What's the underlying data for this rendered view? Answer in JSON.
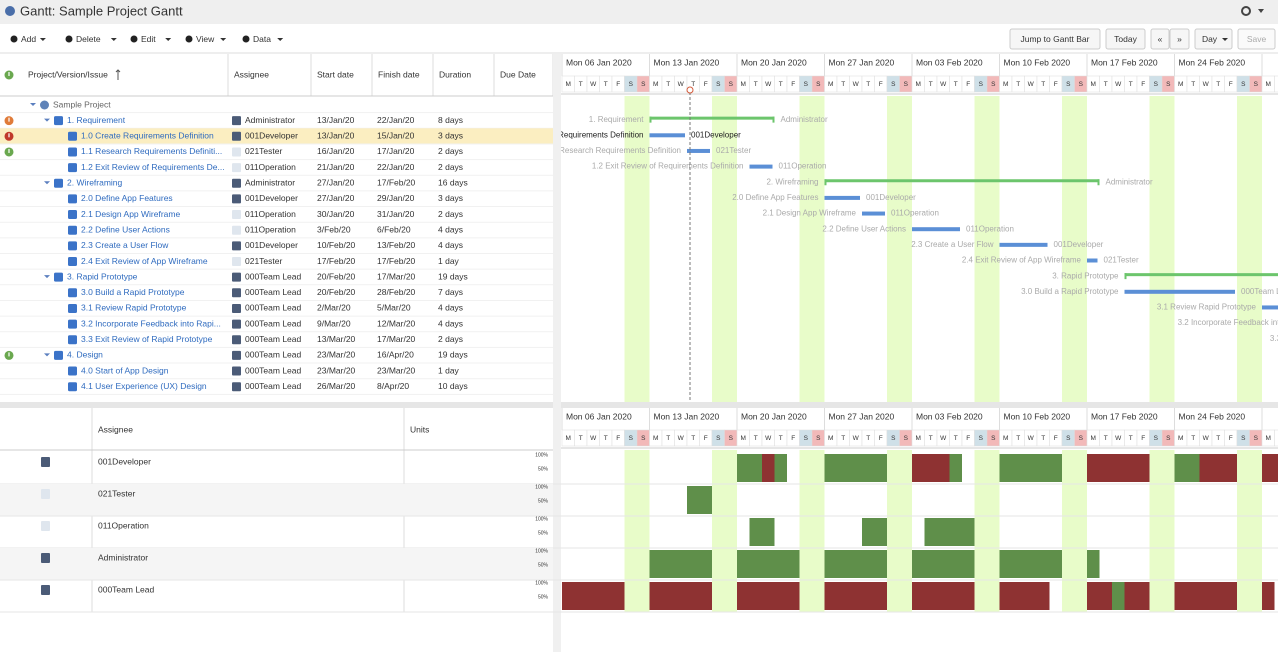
{
  "header": {
    "title": "Gantt: Sample Project Gantt"
  },
  "toolbar": {
    "left": [
      "Add",
      "Delete",
      "Edit",
      "View",
      "Data"
    ],
    "right": [
      "Jump to Gantt Bar",
      "Today",
      "«",
      "»",
      "Day",
      "Save"
    ]
  },
  "grid": {
    "columns": [
      "Project/Version/Issue",
      "Assignee",
      "Start date",
      "Finish date",
      "Duration",
      "Due Date"
    ],
    "header_flag": "ok",
    "rows": [
      {
        "name": "Sample Project",
        "kind": "project",
        "level": 0
      },
      {
        "name": "1. Requirement",
        "assignee": "Administrator",
        "start": "13/Jan/20",
        "finish": "22/Jan/20",
        "duration": "8 days",
        "kind": "summary",
        "level": 1,
        "flag": "warn"
      },
      {
        "name": "1.0 Create Requirements Definition",
        "assignee": "001Developer",
        "start": "13/Jan/20",
        "finish": "15/Jan/20",
        "duration": "3 days",
        "kind": "task",
        "level": 2,
        "flag": "late",
        "selected": true
      },
      {
        "name": "1.1 Research Requirements Definiti...",
        "gantt_name": "1.1 Research Requirements Definition",
        "assignee": "021Tester",
        "start": "16/Jan/20",
        "finish": "17/Jan/20",
        "duration": "2 days",
        "kind": "task",
        "level": 2,
        "flag": "ok"
      },
      {
        "name": "1.2 Exit Review of Requirements De...",
        "gantt_name": "1.2 Exit Review of Requirements Definition",
        "assignee": "011Operation",
        "start": "21/Jan/20",
        "finish": "22/Jan/20",
        "duration": "2 days",
        "kind": "task",
        "level": 2
      },
      {
        "name": "2. Wireframing",
        "assignee": "Administrator",
        "start": "27/Jan/20",
        "finish": "17/Feb/20",
        "duration": "16 days",
        "kind": "summary",
        "level": 1
      },
      {
        "name": "2.0 Define App Features",
        "assignee": "001Developer",
        "start": "27/Jan/20",
        "finish": "29/Jan/20",
        "duration": "3 days",
        "kind": "task",
        "level": 2
      },
      {
        "name": "2.1 Design App Wireframe",
        "assignee": "011Operation",
        "start": "30/Jan/20",
        "finish": "31/Jan/20",
        "duration": "2 days",
        "kind": "task",
        "level": 2
      },
      {
        "name": "2.2 Define User Actions",
        "assignee": "011Operation",
        "start": "3/Feb/20",
        "finish": "6/Feb/20",
        "duration": "4 days",
        "kind": "task",
        "level": 2
      },
      {
        "name": "2.3 Create a User Flow",
        "assignee": "001Developer",
        "start": "10/Feb/20",
        "finish": "13/Feb/20",
        "duration": "4 days",
        "kind": "task",
        "level": 2
      },
      {
        "name": "2.4 Exit Review of App Wireframe",
        "assignee": "021Tester",
        "start": "17/Feb/20",
        "finish": "17/Feb/20",
        "duration": "1 day",
        "kind": "task",
        "level": 2
      },
      {
        "name": "3. Rapid Prototype",
        "assignee": "000Team Lead",
        "start": "20/Feb/20",
        "finish": "17/Mar/20",
        "duration": "19 days",
        "kind": "summary",
        "level": 1
      },
      {
        "name": "3.0 Build a Rapid Prototype",
        "assignee": "000Team Lead",
        "start": "20/Feb/20",
        "finish": "28/Feb/20",
        "duration": "7 days",
        "kind": "task",
        "level": 2
      },
      {
        "name": "3.1 Review Rapid Prototype",
        "assignee": "000Team Lead",
        "start": "2/Mar/20",
        "finish": "5/Mar/20",
        "duration": "4 days",
        "kind": "task",
        "level": 2
      },
      {
        "name": "3.2 Incorporate Feedback into Rapi...",
        "gantt_name": "3.2 Incorporate Feedback into Rapid Prototype",
        "assignee": "000Team Lead",
        "start": "9/Mar/20",
        "finish": "12/Mar/20",
        "duration": "4 days",
        "kind": "task",
        "level": 2
      },
      {
        "name": "3.3 Exit Review of Rapid Prototype",
        "assignee": "000Team Lead",
        "start": "13/Mar/20",
        "finish": "17/Mar/20",
        "duration": "2 days",
        "kind": "task",
        "level": 2
      },
      {
        "name": "4. Design",
        "assignee": "000Team Lead",
        "start": "23/Mar/20",
        "finish": "16/Apr/20",
        "duration": "19 days",
        "kind": "summary",
        "level": 1,
        "flag": "ok"
      },
      {
        "name": "4.0 Start of App Design",
        "assignee": "000Team Lead",
        "start": "23/Mar/20",
        "finish": "23/Mar/20",
        "duration": "1 day",
        "kind": "task",
        "level": 2
      },
      {
        "name": "4.1 User Experience (UX) Design",
        "assignee": "000Team Lead",
        "start": "26/Mar/20",
        "finish": "8/Apr/20",
        "duration": "10 days",
        "kind": "task",
        "level": 2
      }
    ]
  },
  "timeline": {
    "weeks": [
      "Mon 06 Jan 2020",
      "Mon 13 Jan 2020",
      "Mon 20 Jan 2020",
      "Mon 27 Jan 2020",
      "Mon 03 Feb 2020",
      "Mon 10 Feb 2020",
      "Mon 17 Feb 2020",
      "Mon 24 Feb 2020"
    ],
    "days": [
      "M",
      "T",
      "W",
      "T",
      "F",
      "S",
      "S"
    ]
  },
  "resources": {
    "columns": [
      "Assignee",
      "Units"
    ],
    "scale_labels": [
      "100%",
      "50%"
    ],
    "rows": [
      {
        "name": "001Developer",
        "load": "--------------ggrg---ggggg--rrrg---ggggg--rrrrr--ggrrr--rrrrr--r"
      },
      {
        "name": "021Tester",
        "load": "----------gg----------------------------------------------"
      },
      {
        "name": "011Operation",
        "load": "---------------gg-------gg---gggg--------------------------"
      },
      {
        "name": "Administrator",
        "load": "-------ggggg--ggggg--ggggg--ggggg--ggggg--g---------------"
      },
      {
        "name": "000Team Lead",
        "load": "rrrrr--rrrrr--rrrrr--rrrrr--rrrrr--rrrr---rrgrr--rrrrr--r"
      }
    ]
  }
}
